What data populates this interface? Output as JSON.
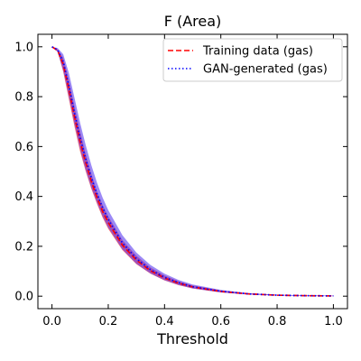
{
  "chart_data": {
    "type": "line",
    "title": "F (Area)",
    "xlabel": "Threshold",
    "ylabel": "",
    "xlim": [
      -0.05,
      1.05
    ],
    "ylim": [
      -0.05,
      1.05
    ],
    "xticks": [
      0.0,
      0.2,
      0.4,
      0.6,
      0.8,
      1.0
    ],
    "xtick_labels": [
      "0.0",
      "0.2",
      "0.4",
      "0.6",
      "0.8",
      "1.0"
    ],
    "yticks": [
      0.0,
      0.2,
      0.4,
      0.6,
      0.8,
      1.0
    ],
    "ytick_labels": [
      "0.0",
      "0.2",
      "0.4",
      "0.6",
      "0.8",
      "1.0"
    ],
    "legend_position": "top-right",
    "grid": false,
    "x": [
      0.0,
      0.02,
      0.04,
      0.06,
      0.08,
      0.1,
      0.12,
      0.14,
      0.16,
      0.18,
      0.2,
      0.25,
      0.3,
      0.35,
      0.4,
      0.45,
      0.5,
      0.6,
      0.7,
      0.8,
      0.9,
      1.0
    ],
    "series": [
      {
        "name": "Training data (gas)",
        "color": "#ff0000",
        "linestyle": "dashed",
        "band_color": "#ff0000",
        "values": [
          1.0,
          0.985,
          0.93,
          0.83,
          0.72,
          0.62,
          0.535,
          0.46,
          0.395,
          0.34,
          0.295,
          0.205,
          0.145,
          0.102,
          0.073,
          0.052,
          0.037,
          0.019,
          0.009,
          0.004,
          0.002,
          0.001
        ],
        "lower": [
          1.0,
          0.98,
          0.9,
          0.79,
          0.68,
          0.58,
          0.5,
          0.43,
          0.37,
          0.315,
          0.27,
          0.185,
          0.128,
          0.09,
          0.063,
          0.044,
          0.031,
          0.015,
          0.007,
          0.003,
          0.001,
          0.0
        ],
        "upper": [
          1.0,
          0.99,
          0.955,
          0.865,
          0.76,
          0.66,
          0.57,
          0.49,
          0.42,
          0.365,
          0.32,
          0.225,
          0.162,
          0.115,
          0.083,
          0.06,
          0.043,
          0.023,
          0.011,
          0.005,
          0.003,
          0.002
        ]
      },
      {
        "name": "GAN-generated (gas)",
        "color": "#0000ff",
        "linestyle": "dotted",
        "band_color": "#5a3cf0",
        "values": [
          1.0,
          0.988,
          0.94,
          0.845,
          0.735,
          0.635,
          0.55,
          0.475,
          0.41,
          0.355,
          0.308,
          0.214,
          0.151,
          0.106,
          0.076,
          0.054,
          0.038,
          0.02,
          0.009,
          0.004,
          0.002,
          0.001
        ],
        "lower": [
          1.0,
          0.98,
          0.905,
          0.8,
          0.69,
          0.59,
          0.505,
          0.435,
          0.375,
          0.32,
          0.275,
          0.188,
          0.13,
          0.091,
          0.064,
          0.045,
          0.031,
          0.015,
          0.007,
          0.003,
          0.001,
          0.0
        ],
        "upper": [
          1.0,
          0.995,
          0.97,
          0.895,
          0.795,
          0.695,
          0.605,
          0.525,
          0.455,
          0.395,
          0.345,
          0.245,
          0.175,
          0.125,
          0.09,
          0.065,
          0.047,
          0.025,
          0.012,
          0.006,
          0.003,
          0.002
        ]
      }
    ]
  }
}
